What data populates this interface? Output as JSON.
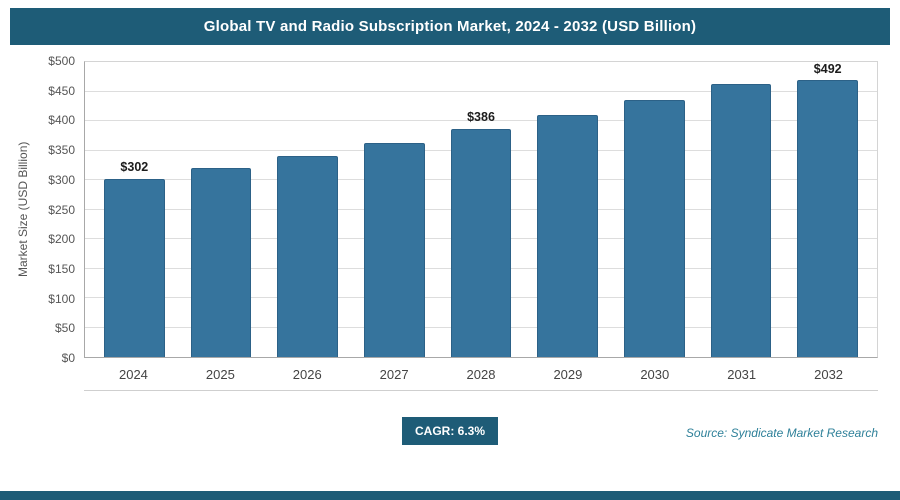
{
  "header": {
    "title": "Global TV and Radio Subscription Market, 2024 - 2032 (USD Billion)"
  },
  "chart_data": {
    "type": "bar",
    "title": "Global TV and Radio Subscription Market, 2024 - 2032 (USD Billion)",
    "categories": [
      "2024",
      "2025",
      "2026",
      "2027",
      "2028",
      "2029",
      "2030",
      "2031",
      "2032"
    ],
    "values": [
      302,
      321,
      341,
      363,
      386,
      410,
      436,
      463,
      492
    ],
    "bar_labels": [
      "$302",
      "",
      "",
      "",
      "$386",
      "",
      "",
      "",
      "$492"
    ],
    "xlabel": "",
    "ylabel": "Market Size (USD Billion)",
    "ylim": [
      0,
      500
    ],
    "ytick_step": 50,
    "yticks": [
      "$0",
      "$50",
      "$100",
      "$150",
      "$200",
      "$250",
      "$300",
      "$350",
      "$400",
      "$450",
      "$500"
    ],
    "grid": "horizontal",
    "legend": "none",
    "bar_color": "#36749D"
  },
  "footer": {
    "cagr_label": "CAGR: 6.3%",
    "source": "Source: Syndicate Market Research"
  },
  "colors": {
    "header_bg": "#1E5C77",
    "bar": "#36749D",
    "accent_strip": "#1E5C77",
    "source_text": "#2E8099"
  }
}
